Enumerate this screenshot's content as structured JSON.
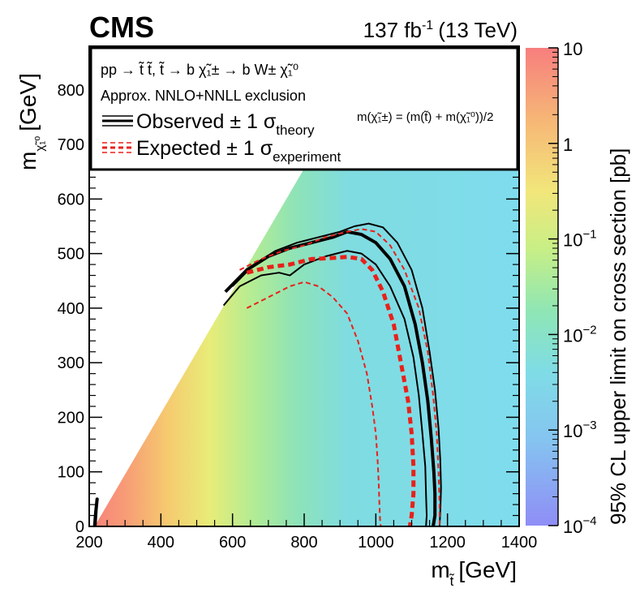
{
  "chart_data": {
    "type": "heatmap",
    "experiment": "CMS",
    "luminosity": "137 fb",
    "luminosity_exp": "-1",
    "energy": "(13 TeV)",
    "xlabel": "m",
    "xlabel_sub": "t̃",
    "xlabel_unit": "[GeV]",
    "ylabel": "m",
    "ylabel_sub": "χ̃₁⁰",
    "ylabel_unit": "[GeV]",
    "zlabel": "95% CL upper limit on cross section [pb]",
    "xlim": [
      200,
      1400
    ],
    "ylim": [
      0,
      880
    ],
    "zlim_log10": [
      -4,
      1
    ],
    "x_ticks": [
      "200",
      "400",
      "600",
      "800",
      "1000",
      "1200",
      "1400"
    ],
    "x_tick_values": [
      200,
      400,
      600,
      800,
      1000,
      1200,
      1400
    ],
    "y_ticks": [
      "0",
      "100",
      "200",
      "300",
      "400",
      "500",
      "600",
      "700",
      "800"
    ],
    "y_tick_values": [
      0,
      100,
      200,
      300,
      400,
      500,
      600,
      700,
      800
    ],
    "z_ticks": [
      {
        "label": "10",
        "exp": "",
        "log10": 1
      },
      {
        "label": "1",
        "exp": "",
        "log10": 0
      },
      {
        "label": "10",
        "exp": "−1",
        "log10": -1
      },
      {
        "label": "10",
        "exp": "−2",
        "log10": -2
      },
      {
        "label": "10",
        "exp": "−3",
        "log10": -3
      },
      {
        "label": "10",
        "exp": "−4",
        "log10": -4
      }
    ],
    "legend": {
      "process": "pp → t̃ t̃, t̃ → b χ̃₁± → b W± χ̃₁⁰",
      "exclusion": "Approx. NNLO+NNLL exclusion",
      "observed": "Observed ± 1 σ",
      "observed_sub": "theory",
      "expected": "Expected ± 1 σ",
      "expected_sub": "experiment",
      "mass_relation": "m(χ̃₁±) = (m(t̃) + m(χ̃₁⁰))/2"
    },
    "series": [
      {
        "name": "Observed",
        "style": "solid",
        "color": "#000000",
        "x": [
          580,
          640,
          700,
          760,
          820,
          880,
          920,
          960,
          1000,
          1040,
          1080,
          1110,
          1130,
          1145,
          1155,
          1162,
          1165,
          1165,
          1160
        ],
        "y": [
          430,
          470,
          495,
          510,
          520,
          530,
          540,
          535,
          520,
          490,
          440,
          370,
          300,
          230,
          160,
          100,
          60,
          20,
          0
        ]
      },
      {
        "name": "Observed +1 sigma theory",
        "style": "solid-thin",
        "color": "#000000",
        "x": [
          600,
          660,
          720,
          780,
          840,
          900,
          940,
          980,
          1020,
          1060,
          1100,
          1130,
          1150,
          1165,
          1175,
          1180,
          1182,
          1180,
          1178
        ],
        "y": [
          440,
          480,
          505,
          520,
          530,
          540,
          550,
          555,
          548,
          520,
          470,
          400,
          320,
          250,
          180,
          120,
          70,
          30,
          0
        ]
      },
      {
        "name": "Observed -1 sigma theory",
        "style": "solid-thin",
        "color": "#000000",
        "x": [
          575,
          620,
          680,
          730,
          760,
          800,
          860,
          920,
          960,
          1000,
          1040,
          1080,
          1105,
          1120,
          1130,
          1138,
          1140,
          1142,
          1140
        ],
        "y": [
          405,
          440,
          460,
          465,
          460,
          480,
          495,
          505,
          500,
          480,
          440,
          380,
          310,
          240,
          170,
          110,
          60,
          20,
          0
        ]
      },
      {
        "name": "Expected",
        "style": "dashed",
        "color": "#e8211a",
        "x": [
          640,
          700,
          760,
          820,
          880,
          920,
          960,
          990,
          1020,
          1050,
          1070,
          1090,
          1100,
          1105,
          1105,
          1100,
          1095
        ],
        "y": [
          465,
          475,
          480,
          490,
          492,
          494,
          490,
          470,
          430,
          370,
          300,
          230,
          170,
          110,
          60,
          20,
          0
        ]
      },
      {
        "name": "Expected +1 sigma experiment",
        "style": "dashed-thin",
        "color": "#e8211a",
        "x": [
          620,
          680,
          740,
          800,
          860,
          920,
          960,
          1000,
          1040,
          1080,
          1120,
          1145,
          1160,
          1170,
          1175,
          1178,
          1178
        ],
        "y": [
          470,
          490,
          505,
          515,
          530,
          540,
          545,
          540,
          515,
          470,
          400,
          320,
          240,
          170,
          100,
          40,
          0
        ]
      },
      {
        "name": "Expected -1 sigma experiment",
        "style": "dashed-thin",
        "color": "#e8211a",
        "x": [
          640,
          700,
          760,
          800,
          840,
          880,
          920,
          950,
          975,
          990,
          1000,
          1005,
          1008,
          1010,
          1012,
          1014
        ],
        "y": [
          400,
          420,
          440,
          448,
          440,
          420,
          390,
          340,
          280,
          220,
          170,
          120,
          80,
          40,
          10,
          0
        ]
      },
      {
        "name": "Observed low-mass island",
        "style": "solid",
        "color": "#000000",
        "x": [
          215,
          218,
          222,
          219,
          216
        ],
        "y": [
          0,
          25,
          50,
          30,
          0
        ]
      }
    ]
  }
}
